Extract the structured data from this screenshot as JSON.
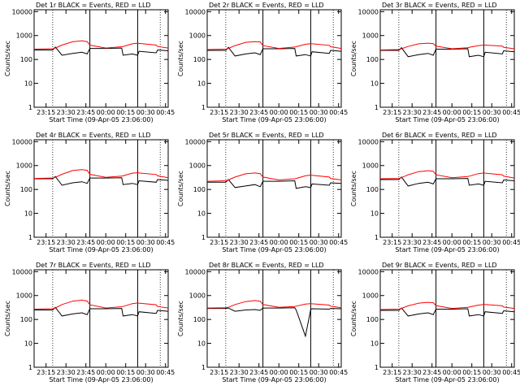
{
  "chart_data": [
    {
      "type": "line",
      "title": "Det 1r BLACK = Events, RED = LLD",
      "x_label": "Start Time (09-Apr-05 23:06:00)",
      "y_label": "Counts/sec",
      "log_y": true,
      "ylim": [
        1,
        12000
      ],
      "yticks": [
        1,
        10,
        100,
        1000,
        10000
      ],
      "xlim": [
        "23:06",
        "00:47"
      ],
      "xticks": [
        "23:15",
        "23:30",
        "23:45",
        "00:00",
        "00:15",
        "00:30",
        "00:45"
      ],
      "vlines": [
        {
          "x": "23:20",
          "style": "dotted"
        },
        {
          "x": "23:48",
          "style": "solid"
        },
        {
          "x": "00:24",
          "style": "solid"
        },
        {
          "x": "00:41",
          "style": "dotted"
        }
      ],
      "x": [
        "23:06",
        "23:20",
        "23:22",
        "23:27",
        "23:35",
        "23:42",
        "23:46",
        "23:48",
        "00:00",
        "00:12",
        "00:13",
        "00:20",
        "00:24",
        "00:25",
        "00:38",
        "00:39",
        "00:47"
      ],
      "series": [
        {
          "name": "Events",
          "color": "#000000",
          "values": [
            250,
            250,
            330,
            150,
            180,
            200,
            170,
            290,
            290,
            300,
            150,
            170,
            150,
            220,
            190,
            250,
            230
          ]
        },
        {
          "name": "LLD",
          "color": "#ff0000",
          "values": [
            270,
            280,
            300,
            400,
            550,
            600,
            560,
            400,
            300,
            340,
            350,
            450,
            480,
            470,
            400,
            350,
            300
          ]
        }
      ]
    },
    {
      "type": "line",
      "title": "Det 2r BLACK = Events, RED = LLD",
      "x_label": "Start Time (09-Apr-05 23:06:00)",
      "y_label": "Counts/sec",
      "log_y": true,
      "ylim": [
        1,
        12000
      ],
      "yticks": [
        1,
        10,
        100,
        1000,
        10000
      ],
      "xlim": [
        "23:06",
        "00:47"
      ],
      "xticks": [
        "23:15",
        "23:30",
        "23:45",
        "00:00",
        "00:15",
        "00:30",
        "00:45"
      ],
      "vlines": [
        {
          "x": "23:20",
          "style": "dotted"
        },
        {
          "x": "23:48",
          "style": "solid"
        },
        {
          "x": "00:24",
          "style": "solid"
        },
        {
          "x": "00:41",
          "style": "dotted"
        }
      ],
      "x": [
        "23:06",
        "23:20",
        "23:22",
        "23:27",
        "23:35",
        "23:42",
        "23:46",
        "23:48",
        "00:00",
        "00:12",
        "00:13",
        "00:20",
        "00:24",
        "00:25",
        "00:38",
        "00:39",
        "00:47"
      ],
      "series": [
        {
          "name": "Events",
          "color": "#000000",
          "values": [
            240,
            240,
            320,
            140,
            170,
            190,
            160,
            280,
            280,
            290,
            140,
            160,
            140,
            210,
            180,
            240,
            220
          ]
        },
        {
          "name": "LLD",
          "color": "#ff0000",
          "values": [
            260,
            270,
            290,
            380,
            520,
            560,
            540,
            380,
            290,
            330,
            340,
            430,
            460,
            450,
            390,
            340,
            290
          ]
        }
      ]
    },
    {
      "type": "line",
      "title": "Det 3r BLACK = Events, RED = LLD",
      "x_label": "Start Time (09-Apr-05 23:06:00)",
      "y_label": "Counts/sec",
      "log_y": true,
      "ylim": [
        1,
        12000
      ],
      "yticks": [
        1,
        10,
        100,
        1000,
        10000
      ],
      "xlim": [
        "23:06",
        "00:47"
      ],
      "xticks": [
        "23:15",
        "23:30",
        "23:45",
        "00:00",
        "00:15",
        "00:30",
        "00:45"
      ],
      "vlines": [
        {
          "x": "23:20",
          "style": "dotted"
        },
        {
          "x": "23:48",
          "style": "solid"
        },
        {
          "x": "00:24",
          "style": "solid"
        },
        {
          "x": "00:41",
          "style": "dotted"
        }
      ],
      "x": [
        "23:06",
        "23:20",
        "23:22",
        "23:27",
        "23:35",
        "23:42",
        "23:46",
        "23:48",
        "00:00",
        "00:12",
        "00:13",
        "00:20",
        "00:24",
        "00:25",
        "00:38",
        "00:39",
        "00:47"
      ],
      "series": [
        {
          "name": "Events",
          "color": "#000000",
          "values": [
            240,
            240,
            310,
            130,
            160,
            180,
            150,
            270,
            270,
            280,
            130,
            150,
            130,
            200,
            170,
            230,
            210
          ]
        },
        {
          "name": "LLD",
          "color": "#ff0000",
          "values": [
            250,
            260,
            280,
            350,
            450,
            480,
            460,
            360,
            280,
            310,
            320,
            380,
            400,
            400,
            360,
            320,
            280
          ]
        }
      ]
    },
    {
      "type": "line",
      "title": "Det 4r BLACK = Events, RED = LLD",
      "x_label": "Start Time (09-Apr-05 23:06:00)",
      "y_label": "Counts/sec",
      "log_y": true,
      "ylim": [
        1,
        12000
      ],
      "yticks": [
        1,
        10,
        100,
        1000,
        10000
      ],
      "xlim": [
        "23:06",
        "00:47"
      ],
      "xticks": [
        "23:15",
        "23:30",
        "23:45",
        "00:00",
        "00:15",
        "00:30",
        "00:45"
      ],
      "vlines": [
        {
          "x": "23:20",
          "style": "dotted"
        },
        {
          "x": "23:48",
          "style": "solid"
        },
        {
          "x": "00:24",
          "style": "solid"
        },
        {
          "x": "00:41",
          "style": "dotted"
        }
      ],
      "x": [
        "23:06",
        "23:20",
        "23:22",
        "23:27",
        "23:35",
        "23:42",
        "23:46",
        "23:48",
        "00:00",
        "00:12",
        "00:13",
        "00:20",
        "00:24",
        "00:25",
        "00:38",
        "00:39",
        "00:47"
      ],
      "series": [
        {
          "name": "Events",
          "color": "#000000",
          "values": [
            280,
            280,
            350,
            150,
            190,
            210,
            180,
            300,
            300,
            310,
            160,
            180,
            160,
            230,
            200,
            260,
            240
          ]
        },
        {
          "name": "LLD",
          "color": "#ff0000",
          "values": [
            290,
            300,
            320,
            430,
            620,
            680,
            630,
            430,
            320,
            360,
            370,
            480,
            500,
            490,
            420,
            370,
            310
          ]
        }
      ]
    },
    {
      "type": "line",
      "title": "Det 5r BLACK = Events, RED = LLD",
      "x_label": "Start Time (09-Apr-05 23:06:00)",
      "y_label": "Counts/sec",
      "log_y": true,
      "ylim": [
        1,
        12000
      ],
      "yticks": [
        1,
        10,
        100,
        1000,
        10000
      ],
      "xlim": [
        "23:06",
        "00:47"
      ],
      "xticks": [
        "23:15",
        "23:30",
        "23:45",
        "00:00",
        "00:15",
        "00:30",
        "00:45"
      ],
      "vlines": [
        {
          "x": "23:20",
          "style": "dotted"
        },
        {
          "x": "23:48",
          "style": "solid"
        },
        {
          "x": "00:24",
          "style": "solid"
        },
        {
          "x": "00:41",
          "style": "dotted"
        }
      ],
      "x": [
        "23:06",
        "23:20",
        "23:22",
        "23:27",
        "23:35",
        "23:42",
        "23:46",
        "23:48",
        "00:00",
        "00:12",
        "00:13",
        "00:20",
        "00:24",
        "00:25",
        "00:38",
        "00:39",
        "00:47"
      ],
      "series": [
        {
          "name": "Events",
          "color": "#000000",
          "values": [
            200,
            200,
            260,
            120,
            140,
            160,
            130,
            220,
            220,
            230,
            110,
            130,
            120,
            170,
            150,
            190,
            180
          ]
        },
        {
          "name": "LLD",
          "color": "#ff0000",
          "values": [
            220,
            230,
            250,
            330,
            450,
            490,
            460,
            330,
            250,
            280,
            290,
            370,
            400,
            390,
            330,
            290,
            250
          ]
        }
      ]
    },
    {
      "type": "line",
      "title": "Det 6r BLACK = Events, RED = LLD",
      "x_label": "Start Time (09-Apr-05 23:06:00)",
      "y_label": "Counts/sec",
      "log_y": true,
      "ylim": [
        1,
        12000
      ],
      "yticks": [
        1,
        10,
        100,
        1000,
        10000
      ],
      "xlim": [
        "23:06",
        "00:47"
      ],
      "xticks": [
        "23:15",
        "23:30",
        "23:45",
        "00:00",
        "00:15",
        "00:30",
        "00:45"
      ],
      "vlines": [
        {
          "x": "23:20",
          "style": "dotted"
        },
        {
          "x": "23:48",
          "style": "solid"
        },
        {
          "x": "00:24",
          "style": "solid"
        },
        {
          "x": "00:41",
          "style": "dotted"
        }
      ],
      "x": [
        "23:06",
        "23:20",
        "23:22",
        "23:27",
        "23:35",
        "23:42",
        "23:46",
        "23:48",
        "00:00",
        "00:12",
        "00:13",
        "00:20",
        "00:24",
        "00:25",
        "00:38",
        "00:39",
        "00:47"
      ],
      "series": [
        {
          "name": "Events",
          "color": "#000000",
          "values": [
            260,
            260,
            330,
            140,
            180,
            200,
            170,
            280,
            280,
            290,
            150,
            170,
            150,
            220,
            190,
            250,
            230
          ]
        },
        {
          "name": "LLD",
          "color": "#ff0000",
          "values": [
            280,
            290,
            310,
            410,
            560,
            610,
            570,
            410,
            310,
            350,
            360,
            460,
            490,
            480,
            410,
            360,
            300
          ]
        }
      ]
    },
    {
      "type": "line",
      "title": "Det 7r BLACK = Events, RED = LLD",
      "x_label": "Start Time (09-Apr-05 23:06:00)",
      "y_label": "Counts/sec",
      "log_y": true,
      "ylim": [
        1,
        12000
      ],
      "yticks": [
        1,
        10,
        100,
        1000,
        10000
      ],
      "xlim": [
        "23:06",
        "00:47"
      ],
      "xticks": [
        "23:15",
        "23:30",
        "23:45",
        "00:00",
        "00:15",
        "00:30",
        "00:45"
      ],
      "vlines": [
        {
          "x": "23:20",
          "style": "dotted"
        },
        {
          "x": "23:48",
          "style": "solid"
        },
        {
          "x": "00:24",
          "style": "solid"
        },
        {
          "x": "00:41",
          "style": "dotted"
        }
      ],
      "x": [
        "23:06",
        "23:20",
        "23:22",
        "23:27",
        "23:35",
        "23:42",
        "23:46",
        "23:48",
        "00:00",
        "00:12",
        "00:13",
        "00:20",
        "00:24",
        "00:25",
        "00:38",
        "00:39",
        "00:47"
      ],
      "series": [
        {
          "name": "Events",
          "color": "#000000",
          "values": [
            250,
            250,
            320,
            140,
            170,
            190,
            160,
            280,
            280,
            290,
            140,
            160,
            140,
            210,
            180,
            240,
            220
          ]
        },
        {
          "name": "LLD",
          "color": "#ff0000",
          "values": [
            270,
            280,
            300,
            420,
            580,
            640,
            590,
            410,
            300,
            340,
            350,
            460,
            490,
            480,
            410,
            350,
            300
          ]
        }
      ]
    },
    {
      "type": "line",
      "title": "Det 8r BLACK = Events, RED = LLD",
      "x_label": "Start Time (09-Apr-05 23:06:00)",
      "y_label": "Counts/sec",
      "log_y": true,
      "ylim": [
        1,
        12000
      ],
      "yticks": [
        1,
        10,
        100,
        1000,
        10000
      ],
      "xlim": [
        "23:06",
        "00:47"
      ],
      "xticks": [
        "23:15",
        "23:30",
        "23:45",
        "00:00",
        "00:15",
        "00:30",
        "00:45"
      ],
      "vlines": [
        {
          "x": "23:20",
          "style": "dotted"
        },
        {
          "x": "23:48",
          "style": "solid"
        },
        {
          "x": "00:24",
          "style": "solid"
        },
        {
          "x": "00:41",
          "style": "dotted"
        }
      ],
      "x": [
        "23:06",
        "23:20",
        "23:22",
        "23:27",
        "23:35",
        "23:42",
        "23:46",
        "23:48",
        "00:00",
        "00:12",
        "00:13",
        "00:20",
        "00:24",
        "00:25",
        "00:38",
        "00:39",
        "00:47"
      ],
      "series": [
        {
          "name": "Events",
          "color": "#000000",
          "values": [
            290,
            290,
            300,
            220,
            250,
            260,
            240,
            300,
            300,
            310,
            250,
            20,
            260,
            280,
            270,
            290,
            280
          ]
        },
        {
          "name": "LLD",
          "color": "#ff0000",
          "values": [
            300,
            310,
            320,
            420,
            560,
            620,
            580,
            420,
            320,
            350,
            360,
            440,
            460,
            450,
            400,
            360,
            310
          ]
        }
      ]
    },
    {
      "type": "line",
      "title": "Det 9r BLACK = Events, RED = LLD",
      "x_label": "Start Time (09-Apr-05 23:06:00)",
      "y_label": "Counts/sec",
      "log_y": true,
      "ylim": [
        1,
        12000
      ],
      "yticks": [
        1,
        10,
        100,
        1000,
        10000
      ],
      "xlim": [
        "23:06",
        "00:47"
      ],
      "xticks": [
        "23:15",
        "23:30",
        "23:45",
        "00:00",
        "00:15",
        "00:30",
        "00:45"
      ],
      "vlines": [
        {
          "x": "23:20",
          "style": "dotted"
        },
        {
          "x": "23:48",
          "style": "solid"
        },
        {
          "x": "00:24",
          "style": "solid"
        },
        {
          "x": "00:41",
          "style": "dotted"
        }
      ],
      "x": [
        "23:06",
        "23:20",
        "23:22",
        "23:27",
        "23:35",
        "23:42",
        "23:46",
        "23:48",
        "00:00",
        "00:12",
        "00:13",
        "00:20",
        "00:24",
        "00:25",
        "00:38",
        "00:39",
        "00:47"
      ],
      "series": [
        {
          "name": "Events",
          "color": "#000000",
          "values": [
            240,
            240,
            300,
            140,
            170,
            190,
            160,
            270,
            270,
            280,
            140,
            160,
            140,
            210,
            180,
            230,
            210
          ]
        },
        {
          "name": "LLD",
          "color": "#ff0000",
          "values": [
            260,
            270,
            290,
            370,
            480,
            520,
            500,
            380,
            290,
            320,
            330,
            400,
            420,
            420,
            370,
            330,
            290
          ]
        }
      ]
    }
  ]
}
